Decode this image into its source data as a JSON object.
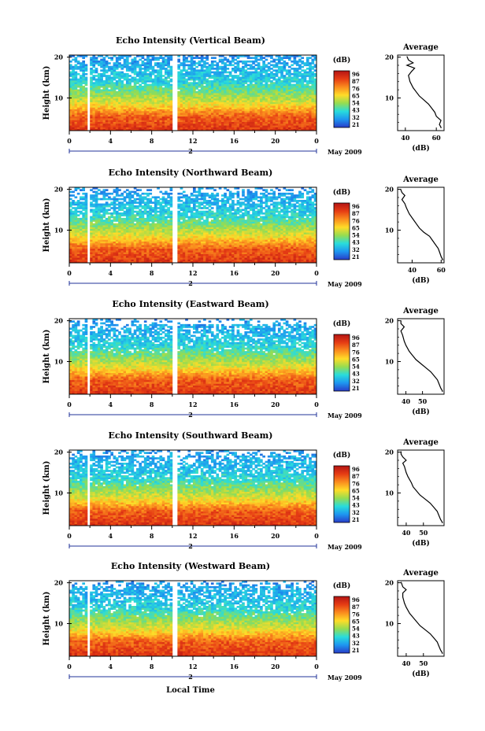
{
  "xlabel": "Local Time",
  "date_label": "May 2009",
  "day_label": "2",
  "colorbar_unit": "(dB)",
  "colorbar_ticks": [
    "96",
    "87",
    "76",
    "65",
    "54",
    "43",
    "32",
    "21"
  ],
  "colorbar_top": [
    [
      180,
      20,
      20
    ],
    [
      230,
      60,
      20
    ],
    [
      250,
      140,
      30
    ],
    [
      255,
      220,
      40
    ],
    [
      150,
      220,
      80
    ],
    [
      40,
      220,
      220
    ],
    [
      30,
      150,
      240
    ],
    [
      40,
      60,
      200
    ]
  ],
  "xticks": [
    "0",
    "4",
    "8",
    "12",
    "16",
    "20",
    "0"
  ],
  "ylabel": "Height (km)",
  "yticks": [
    "20",
    "10"
  ],
  "avg_title": "Average",
  "avg_xlabel": "(dB)",
  "chart_data": [
    {
      "type": "heatmap",
      "title": "Echo Intensity (Vertical Beam)",
      "xlabel": "Local Time",
      "ylabel": "Height (km)",
      "xlim": [
        0,
        24
      ],
      "ylim": [
        2,
        20.5
      ],
      "colorbar_range": [
        21,
        96
      ],
      "gaps": [
        [
          1.7,
          2.1
        ],
        [
          10.0,
          10.4
        ]
      ],
      "average": {
        "title": "Average",
        "xticks": [
          "40",
          "60"
        ],
        "xlim": [
          35,
          65
        ],
        "ylim": [
          2,
          20.5
        ],
        "profile": [
          [
            63,
            2.8
          ],
          [
            62,
            3.5
          ],
          [
            63,
            4.5
          ],
          [
            60,
            5.5
          ],
          [
            59,
            6.5
          ],
          [
            57,
            7.5
          ],
          [
            55,
            8.5
          ],
          [
            52,
            9.5
          ],
          [
            49,
            10.5
          ],
          [
            47,
            11.5
          ],
          [
            45,
            12.5
          ],
          [
            43,
            14
          ],
          [
            42,
            15.5
          ],
          [
            44,
            16.5
          ],
          [
            46,
            17.3
          ],
          [
            41,
            18
          ],
          [
            45,
            18.6
          ],
          [
            42,
            19.3
          ],
          [
            41,
            20.2
          ]
        ]
      }
    },
    {
      "type": "heatmap",
      "title": "Echo Intensity (Northward Beam)",
      "xlabel": "Local Time",
      "ylabel": "Height (km)",
      "xlim": [
        0,
        24
      ],
      "ylim": [
        2,
        20.5
      ],
      "colorbar_range": [
        21,
        96
      ],
      "gaps": [
        [
          1.7,
          2.1
        ],
        [
          10.0,
          10.4
        ]
      ],
      "average": {
        "title": "Average",
        "xticks": [
          "40",
          "60"
        ],
        "xlim": [
          30,
          62
        ],
        "ylim": [
          2,
          20.5
        ],
        "profile": [
          [
            61,
            2.8
          ],
          [
            60,
            3.5
          ],
          [
            59,
            4.5
          ],
          [
            58,
            5.5
          ],
          [
            56,
            6.5
          ],
          [
            54,
            7.5
          ],
          [
            52,
            8.5
          ],
          [
            48,
            9.5
          ],
          [
            45,
            10.5
          ],
          [
            43,
            11.5
          ],
          [
            41,
            12.5
          ],
          [
            38,
            14
          ],
          [
            36,
            15.5
          ],
          [
            35,
            16.5
          ],
          [
            33,
            17.5
          ],
          [
            35,
            18.5
          ],
          [
            33,
            19.2
          ],
          [
            32,
            20.1
          ]
        ]
      }
    },
    {
      "type": "heatmap",
      "title": "Echo Intensity (Eastward Beam)",
      "xlabel": "Local Time",
      "ylabel": "Height (km)",
      "xlim": [
        0,
        24
      ],
      "ylim": [
        2,
        20.5
      ],
      "colorbar_range": [
        21,
        96
      ],
      "gaps": [
        [
          1.7,
          2.1
        ],
        [
          10.0,
          10.4
        ]
      ],
      "average": {
        "title": "Average",
        "xticks": [
          "40",
          "50"
        ],
        "xlim": [
          35,
          63
        ],
        "ylim": [
          2,
          20.5
        ],
        "profile": [
          [
            62,
            2.8
          ],
          [
            61,
            3.5
          ],
          [
            60,
            4.5
          ],
          [
            59,
            5.5
          ],
          [
            57,
            6.5
          ],
          [
            55,
            7.5
          ],
          [
            52,
            8.5
          ],
          [
            49,
            9.5
          ],
          [
            46,
            10.5
          ],
          [
            44,
            11.5
          ],
          [
            42,
            12.5
          ],
          [
            40,
            14
          ],
          [
            39,
            15
          ],
          [
            38,
            16.5
          ],
          [
            37,
            17.5
          ],
          [
            39,
            18.5
          ],
          [
            37,
            19.3
          ],
          [
            37,
            20.1
          ]
        ]
      }
    },
    {
      "type": "heatmap",
      "title": "Echo Intensity (Southward Beam)",
      "xlabel": "Local Time",
      "ylabel": "Height (km)",
      "xlim": [
        0,
        24
      ],
      "ylim": [
        2,
        20.5
      ],
      "colorbar_range": [
        21,
        96
      ],
      "gaps": [
        [
          1.7,
          2.1
        ],
        [
          10.0,
          10.4
        ]
      ],
      "average": {
        "title": "Average",
        "xticks": [
          "40",
          "50"
        ],
        "xlim": [
          35,
          62
        ],
        "ylim": [
          2,
          20.5
        ],
        "profile": [
          [
            61,
            2.8
          ],
          [
            60,
            3.5
          ],
          [
            59,
            4.5
          ],
          [
            58,
            5.5
          ],
          [
            56,
            6.5
          ],
          [
            54,
            7.5
          ],
          [
            51,
            8.5
          ],
          [
            48,
            9.5
          ],
          [
            46,
            10.5
          ],
          [
            44,
            11.5
          ],
          [
            43,
            12.5
          ],
          [
            41,
            14
          ],
          [
            40,
            15
          ],
          [
            39,
            16.5
          ],
          [
            38,
            17.3
          ],
          [
            40,
            18
          ],
          [
            38,
            18.8
          ],
          [
            37,
            19.5
          ],
          [
            37,
            20.2
          ]
        ]
      }
    },
    {
      "type": "heatmap",
      "title": "Echo Intensity (Westward Beam)",
      "xlabel": "Local Time",
      "ylabel": "Height (km)",
      "xlim": [
        0,
        24
      ],
      "ylim": [
        2,
        20.5
      ],
      "colorbar_range": [
        21,
        96
      ],
      "gaps": [
        [
          1.7,
          2.1
        ],
        [
          10.0,
          10.4
        ]
      ],
      "average": {
        "title": "Average",
        "xticks": [
          "40",
          "50"
        ],
        "xlim": [
          35,
          62
        ],
        "ylim": [
          2,
          20.5
        ],
        "profile": [
          [
            61,
            2.8
          ],
          [
            60,
            3.5
          ],
          [
            59,
            4.5
          ],
          [
            58,
            5.5
          ],
          [
            56,
            6.5
          ],
          [
            54,
            7.5
          ],
          [
            51,
            8.5
          ],
          [
            48,
            9.5
          ],
          [
            46,
            10.5
          ],
          [
            44,
            11.5
          ],
          [
            42,
            12.5
          ],
          [
            40,
            14
          ],
          [
            39,
            15
          ],
          [
            38,
            16.5
          ],
          [
            38,
            17.5
          ],
          [
            40,
            18.3
          ],
          [
            38,
            19
          ],
          [
            37,
            20.2
          ]
        ]
      }
    }
  ]
}
